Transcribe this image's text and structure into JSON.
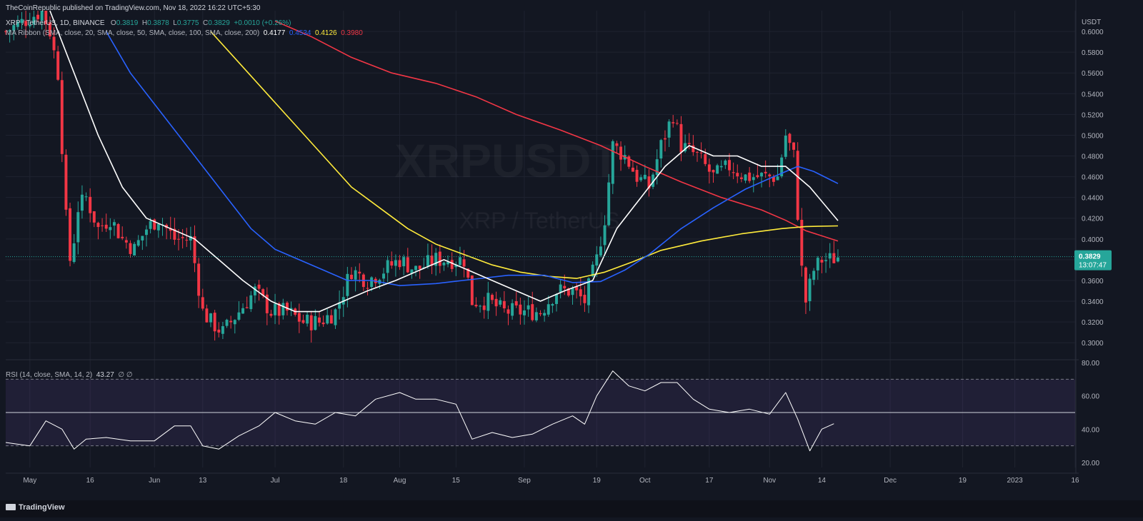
{
  "header": {
    "publisher": "TheCoinRepublic published on TradingView.com, Nov 18, 2022 16:22 UTC+5:30",
    "symbol": "XRP / TetherUS, 1D, BINANCE",
    "ohlc": {
      "o_label": "O",
      "o": "0.3819",
      "h_label": "H",
      "h": "0.3878",
      "l_label": "L",
      "l": "0.3775",
      "c_label": "C",
      "c": "0.3829",
      "change": "+0.0010 (+0.26%)"
    },
    "ma_title": "MA Ribbon (SMA, close, 20, SMA, close, 50, SMA, close, 100, SMA, close, 200)",
    "ma_values": [
      {
        "value": "0.4177",
        "color": "#ffffff"
      },
      {
        "value": "0.4534",
        "color": "#2962ff"
      },
      {
        "value": "0.4126",
        "color": "#ffeb3b"
      },
      {
        "value": "0.3980",
        "color": "#f23645"
      }
    ],
    "rsi_title": "RSI (14, close, SMA, 14, 2)",
    "rsi_value": "43.27",
    "rsi_extra": "∅ ∅"
  },
  "watermark": {
    "big": "XRPUSDT",
    "small": "XRP / TetherUS"
  },
  "price_badge": {
    "price": "0.3829",
    "countdown": "13:07:47",
    "color": "#26a69a"
  },
  "footer": {
    "brand": "TradingView"
  },
  "colors": {
    "up": "#26a69a",
    "down": "#f23645",
    "sma20": "#ffffff",
    "sma50": "#2962ff",
    "sma100": "#ffeb3b",
    "sma200": "#f23645",
    "rsi": "#ffffff",
    "background": "#131722"
  },
  "chart_data": [
    {
      "type": "candlestick",
      "y_unit": "USDT",
      "ylim": [
        0.285,
        0.62
      ],
      "y_ticks": [
        "0.6000",
        "0.5800",
        "0.5600",
        "0.5400",
        "0.5200",
        "0.5000",
        "0.4800",
        "0.4600",
        "0.4400",
        "0.4200",
        "0.4000",
        "0.3800",
        "0.3600",
        "0.3400",
        "0.3200",
        "0.3000"
      ],
      "x_ticks": [
        "May",
        "16",
        "Jun",
        "13",
        "Jul",
        "18",
        "Aug",
        "15",
        "Sep",
        "19",
        "Oct",
        "17",
        "Nov",
        "14",
        "Dec",
        "19",
        "2023",
        "16"
      ],
      "x_tick_dates": [
        "2022-05-01",
        "2022-05-16",
        "2022-06-01",
        "2022-06-13",
        "2022-07-01",
        "2022-07-18",
        "2022-08-01",
        "2022-08-15",
        "2022-09-01",
        "2022-09-19",
        "2022-10-01",
        "2022-10-17",
        "2022-11-01",
        "2022-11-14",
        "2022-12-01",
        "2022-12-19",
        "2023-01-01",
        "2023-01-16"
      ],
      "x_range": [
        "2022-04-25",
        "2023-01-16"
      ],
      "closes": [
        [
          "2022-04-25",
          0.6
        ],
        [
          "2022-05-04",
          0.62
        ],
        [
          "2022-05-06",
          0.6
        ],
        [
          "2022-05-08",
          0.56
        ],
        [
          "2022-05-10",
          0.42
        ],
        [
          "2022-05-11",
          0.38
        ],
        [
          "2022-05-12",
          0.4
        ],
        [
          "2022-05-13",
          0.43
        ],
        [
          "2022-05-15",
          0.44
        ],
        [
          "2022-05-18",
          0.41
        ],
        [
          "2022-05-21",
          0.42
        ],
        [
          "2022-05-24",
          0.4
        ],
        [
          "2022-05-27",
          0.39
        ],
        [
          "2022-05-30",
          0.41
        ],
        [
          "2022-06-02",
          0.42
        ],
        [
          "2022-06-06",
          0.4
        ],
        [
          "2022-06-10",
          0.4
        ],
        [
          "2022-06-13",
          0.33
        ],
        [
          "2022-06-15",
          0.32
        ],
        [
          "2022-06-18",
          0.31
        ],
        [
          "2022-06-22",
          0.33
        ],
        [
          "2022-06-26",
          0.35
        ],
        [
          "2022-06-30",
          0.33
        ],
        [
          "2022-07-04",
          0.33
        ],
        [
          "2022-07-08",
          0.32
        ],
        [
          "2022-07-12",
          0.32
        ],
        [
          "2022-07-16",
          0.33
        ],
        [
          "2022-07-20",
          0.37
        ],
        [
          "2022-07-24",
          0.36
        ],
        [
          "2022-07-28",
          0.37
        ],
        [
          "2022-08-01",
          0.38
        ],
        [
          "2022-08-05",
          0.37
        ],
        [
          "2022-08-10",
          0.38
        ],
        [
          "2022-08-14",
          0.38
        ],
        [
          "2022-08-17",
          0.38
        ],
        [
          "2022-08-19",
          0.34
        ],
        [
          "2022-08-23",
          0.34
        ],
        [
          "2022-08-27",
          0.33
        ],
        [
          "2022-09-01",
          0.33
        ],
        [
          "2022-09-05",
          0.33
        ],
        [
          "2022-09-09",
          0.35
        ],
        [
          "2022-09-13",
          0.35
        ],
        [
          "2022-09-16",
          0.34
        ],
        [
          "2022-09-19",
          0.38
        ],
        [
          "2022-09-21",
          0.42
        ],
        [
          "2022-09-23",
          0.49
        ],
        [
          "2022-09-26",
          0.48
        ],
        [
          "2022-09-29",
          0.46
        ],
        [
          "2022-10-02",
          0.45
        ],
        [
          "2022-10-05",
          0.49
        ],
        [
          "2022-10-08",
          0.52
        ],
        [
          "2022-10-10",
          0.49
        ],
        [
          "2022-10-14",
          0.48
        ],
        [
          "2022-10-18",
          0.46
        ],
        [
          "2022-10-22",
          0.47
        ],
        [
          "2022-10-26",
          0.46
        ],
        [
          "2022-10-30",
          0.46
        ],
        [
          "2022-11-03",
          0.46
        ],
        [
          "2022-11-05",
          0.5
        ],
        [
          "2022-11-07",
          0.48
        ],
        [
          "2022-11-09",
          0.37
        ],
        [
          "2022-11-10",
          0.34
        ],
        [
          "2022-11-12",
          0.37
        ],
        [
          "2022-11-14",
          0.38
        ],
        [
          "2022-11-16",
          0.38
        ],
        [
          "2022-11-18",
          0.3829
        ]
      ],
      "sma20": [
        [
          "2022-05-06",
          0.62
        ],
        [
          "2022-05-12",
          0.56
        ],
        [
          "2022-05-18",
          0.5
        ],
        [
          "2022-05-24",
          0.45
        ],
        [
          "2022-05-30",
          0.42
        ],
        [
          "2022-06-05",
          0.41
        ],
        [
          "2022-06-11",
          0.4
        ],
        [
          "2022-06-17",
          0.38
        ],
        [
          "2022-06-23",
          0.36
        ],
        [
          "2022-06-30",
          0.34
        ],
        [
          "2022-07-06",
          0.33
        ],
        [
          "2022-07-12",
          0.33
        ],
        [
          "2022-07-18",
          0.34
        ],
        [
          "2022-07-24",
          0.35
        ],
        [
          "2022-07-31",
          0.36
        ],
        [
          "2022-08-06",
          0.37
        ],
        [
          "2022-08-12",
          0.38
        ],
        [
          "2022-08-18",
          0.37
        ],
        [
          "2022-08-24",
          0.36
        ],
        [
          "2022-08-30",
          0.35
        ],
        [
          "2022-09-05",
          0.34
        ],
        [
          "2022-09-11",
          0.35
        ],
        [
          "2022-09-18",
          0.36
        ],
        [
          "2022-09-24",
          0.41
        ],
        [
          "2022-09-30",
          0.44
        ],
        [
          "2022-10-06",
          0.47
        ],
        [
          "2022-10-12",
          0.49
        ],
        [
          "2022-10-18",
          0.48
        ],
        [
          "2022-10-24",
          0.48
        ],
        [
          "2022-10-30",
          0.47
        ],
        [
          "2022-11-05",
          0.47
        ],
        [
          "2022-11-11",
          0.45
        ],
        [
          "2022-11-18",
          0.4177
        ]
      ],
      "sma50": [
        [
          "2022-05-20",
          0.6
        ],
        [
          "2022-05-26",
          0.56
        ],
        [
          "2022-06-01",
          0.53
        ],
        [
          "2022-06-07",
          0.5
        ],
        [
          "2022-06-13",
          0.47
        ],
        [
          "2022-06-19",
          0.44
        ],
        [
          "2022-06-25",
          0.41
        ],
        [
          "2022-07-01",
          0.39
        ],
        [
          "2022-07-07",
          0.38
        ],
        [
          "2022-07-13",
          0.37
        ],
        [
          "2022-07-19",
          0.36
        ],
        [
          "2022-07-25",
          0.36
        ],
        [
          "2022-08-01",
          0.355
        ],
        [
          "2022-08-10",
          0.357
        ],
        [
          "2022-08-19",
          0.361
        ],
        [
          "2022-08-28",
          0.365
        ],
        [
          "2022-09-06",
          0.365
        ],
        [
          "2022-09-13",
          0.358
        ],
        [
          "2022-09-20",
          0.359
        ],
        [
          "2022-09-26",
          0.37
        ],
        [
          "2022-10-02",
          0.385
        ],
        [
          "2022-10-10",
          0.41
        ],
        [
          "2022-10-18",
          0.43
        ],
        [
          "2022-10-26",
          0.448
        ],
        [
          "2022-11-02",
          0.46
        ],
        [
          "2022-11-08",
          0.47
        ],
        [
          "2022-11-12",
          0.465
        ],
        [
          "2022-11-18",
          0.4534
        ]
      ],
      "sma100": [
        [
          "2022-06-15",
          0.6
        ],
        [
          "2022-06-22",
          0.57
        ],
        [
          "2022-06-29",
          0.54
        ],
        [
          "2022-07-06",
          0.51
        ],
        [
          "2022-07-13",
          0.48
        ],
        [
          "2022-07-20",
          0.45
        ],
        [
          "2022-07-27",
          0.43
        ],
        [
          "2022-08-03",
          0.41
        ],
        [
          "2022-08-10",
          0.395
        ],
        [
          "2022-08-17",
          0.385
        ],
        [
          "2022-08-24",
          0.375
        ],
        [
          "2022-08-31",
          0.368
        ],
        [
          "2022-09-07",
          0.364
        ],
        [
          "2022-09-14",
          0.362
        ],
        [
          "2022-09-21",
          0.368
        ],
        [
          "2022-09-28",
          0.378
        ],
        [
          "2022-10-05",
          0.389
        ],
        [
          "2022-10-15",
          0.398
        ],
        [
          "2022-10-25",
          0.405
        ],
        [
          "2022-11-04",
          0.41
        ],
        [
          "2022-11-10",
          0.412
        ],
        [
          "2022-11-18",
          0.4126
        ]
      ],
      "sma200": [
        [
          "2022-07-01",
          0.61
        ],
        [
          "2022-07-10",
          0.595
        ],
        [
          "2022-07-20",
          0.575
        ],
        [
          "2022-07-30",
          0.56
        ],
        [
          "2022-08-10",
          0.55
        ],
        [
          "2022-08-20",
          0.537
        ],
        [
          "2022-08-30",
          0.52
        ],
        [
          "2022-09-10",
          0.505
        ],
        [
          "2022-09-20",
          0.49
        ],
        [
          "2022-10-01",
          0.47
        ],
        [
          "2022-10-10",
          0.455
        ],
        [
          "2022-10-20",
          0.44
        ],
        [
          "2022-10-30",
          0.428
        ],
        [
          "2022-11-05",
          0.418
        ],
        [
          "2022-11-10",
          0.408
        ],
        [
          "2022-11-18",
          0.398
        ]
      ]
    },
    {
      "type": "line",
      "title": "RSI (14, close, SMA, 14, 2)",
      "ylim": [
        17,
        80
      ],
      "y_ticks": [
        "80.00",
        "60.00",
        "40.00",
        "20.00"
      ],
      "levels": [
        70,
        50,
        30
      ],
      "rsi": [
        [
          "2022-04-25",
          32
        ],
        [
          "2022-05-01",
          30
        ],
        [
          "2022-05-05",
          45
        ],
        [
          "2022-05-09",
          40
        ],
        [
          "2022-05-12",
          28
        ],
        [
          "2022-05-15",
          34
        ],
        [
          "2022-05-20",
          35
        ],
        [
          "2022-05-26",
          33
        ],
        [
          "2022-06-01",
          33
        ],
        [
          "2022-06-06",
          42
        ],
        [
          "2022-06-10",
          42
        ],
        [
          "2022-06-13",
          30
        ],
        [
          "2022-06-17",
          28
        ],
        [
          "2022-06-22",
          36
        ],
        [
          "2022-06-27",
          42
        ],
        [
          "2022-07-01",
          50
        ],
        [
          "2022-07-06",
          45
        ],
        [
          "2022-07-11",
          43
        ],
        [
          "2022-07-16",
          50
        ],
        [
          "2022-07-21",
          48
        ],
        [
          "2022-07-26",
          58
        ],
        [
          "2022-08-01",
          62
        ],
        [
          "2022-08-05",
          58
        ],
        [
          "2022-08-10",
          58
        ],
        [
          "2022-08-15",
          55
        ],
        [
          "2022-08-19",
          34
        ],
        [
          "2022-08-24",
          38
        ],
        [
          "2022-08-29",
          35
        ],
        [
          "2022-09-03",
          37
        ],
        [
          "2022-09-08",
          43
        ],
        [
          "2022-09-13",
          48
        ],
        [
          "2022-09-16",
          43
        ],
        [
          "2022-09-19",
          60
        ],
        [
          "2022-09-23",
          75
        ],
        [
          "2022-09-27",
          66
        ],
        [
          "2022-10-01",
          63
        ],
        [
          "2022-10-05",
          68
        ],
        [
          "2022-10-09",
          68
        ],
        [
          "2022-10-13",
          58
        ],
        [
          "2022-10-17",
          52
        ],
        [
          "2022-10-22",
          50
        ],
        [
          "2022-10-27",
          52
        ],
        [
          "2022-11-01",
          49
        ],
        [
          "2022-11-05",
          62
        ],
        [
          "2022-11-08",
          46
        ],
        [
          "2022-11-11",
          27
        ],
        [
          "2022-11-14",
          40
        ],
        [
          "2022-11-17",
          43.27
        ]
      ]
    }
  ]
}
